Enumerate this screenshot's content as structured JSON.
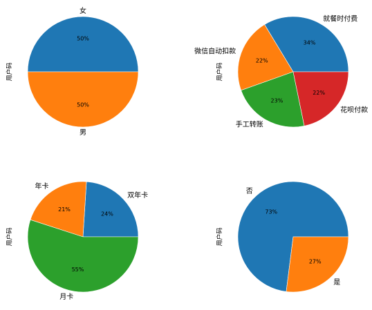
{
  "chart_data": [
    {
      "type": "pie",
      "ylabel": "用户码",
      "labels": [
        "女",
        "男"
      ],
      "values": [
        50,
        50
      ],
      "percent_labels": [
        "50%",
        "50%"
      ],
      "colors": [
        "#1f77b4",
        "#ff7f0e"
      ],
      "start_angle": 0,
      "counterclock": true
    },
    {
      "type": "pie",
      "ylabel": "用户码",
      "labels": [
        "就餐时付费",
        "微信自动扣款",
        "手工转账",
        "花呗付款"
      ],
      "values": [
        34,
        22,
        23,
        22
      ],
      "percent_labels": [
        "34%",
        "22%",
        "23%",
        "22%"
      ],
      "colors": [
        "#1f77b4",
        "#ff7f0e",
        "#2ca02c",
        "#d62728"
      ],
      "start_angle": 0,
      "counterclock": true
    },
    {
      "type": "pie",
      "ylabel": "用户码",
      "labels": [
        "双年卡",
        "年卡",
        "月卡"
      ],
      "values": [
        24,
        21,
        55
      ],
      "percent_labels": [
        "24%",
        "21%",
        "55%"
      ],
      "colors": [
        "#1f77b4",
        "#ff7f0e",
        "#2ca02c"
      ],
      "start_angle": 0,
      "counterclock": true
    },
    {
      "type": "pie",
      "ylabel": "用户码",
      "labels": [
        "否",
        "是"
      ],
      "values": [
        73,
        27
      ],
      "percent_labels": [
        "73%",
        "27%"
      ],
      "colors": [
        "#1f77b4",
        "#ff7f0e"
      ],
      "start_angle": 0,
      "counterclock": true
    }
  ]
}
